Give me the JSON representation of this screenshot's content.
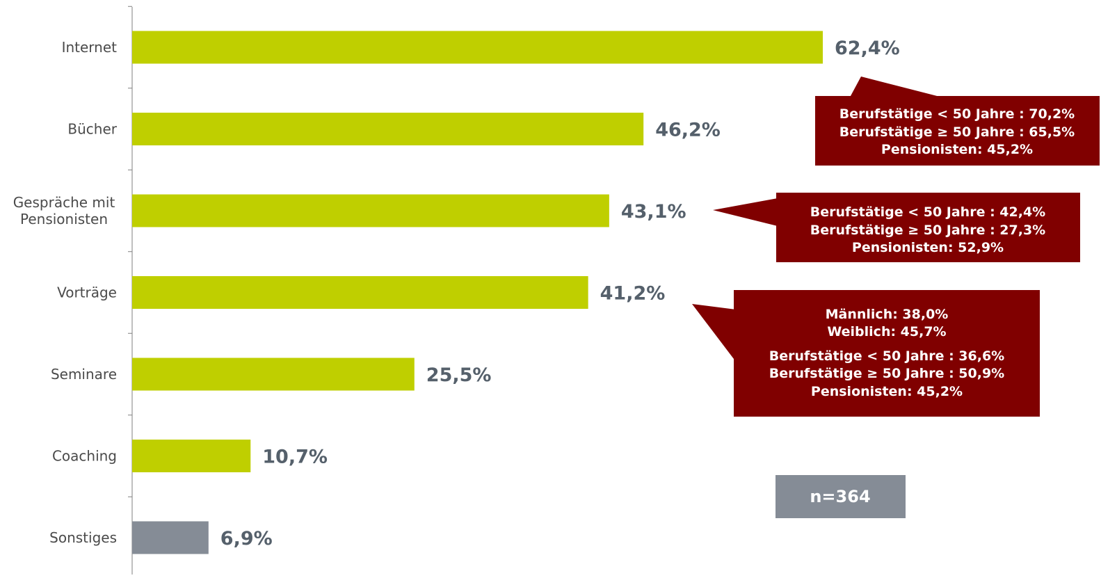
{
  "chart_data": {
    "type": "bar",
    "orientation": "horizontal",
    "categories": [
      "Internet",
      "Bücher",
      "Gespräche mit Pensionisten",
      "Vorträge",
      "Seminare",
      "Coaching",
      "Sonstiges"
    ],
    "category_lines": [
      [
        "Internet"
      ],
      [
        "Bücher"
      ],
      [
        "Gespräche mit",
        "Pensionisten"
      ],
      [
        "Vorträge"
      ],
      [
        "Seminare"
      ],
      [
        "Coaching"
      ],
      [
        "Sonstiges"
      ]
    ],
    "values": [
      62.4,
      46.2,
      43.1,
      41.2,
      25.5,
      10.7,
      6.9
    ],
    "value_labels": [
      "62,4%",
      "46,2%",
      "43,1%",
      "41,2%",
      "25,5%",
      "10,7%",
      "6,9%"
    ],
    "xlim": [
      0,
      70
    ],
    "grid": false,
    "colors": {
      "bar": "#bfcf00",
      "bar_last": "#858c96",
      "value_text": "#55606b",
      "note_box": "#800000",
      "n_box": "#858c96"
    },
    "annotations": [
      {
        "category": "Internet",
        "lines": [
          "Berufstätige < 50 Jahre : 70,2%",
          "Berufstätige ≥ 50 Jahre : 65,5%",
          "Pensionisten:  45,2%"
        ]
      },
      {
        "category": "Gespräche mit Pensionisten",
        "lines": [
          "Berufstätige < 50 Jahre : 42,4%",
          "Berufstätige ≥ 50 Jahre : 27,3%",
          "Pensionisten:  52,9%"
        ]
      },
      {
        "category": "Vorträge",
        "lines": [
          "Männlich: 38,0%",
          "Weiblich: 45,7%",
          "Berufstätige < 50 Jahre : 36,6%",
          "Berufstätige ≥ 50 Jahre : 50,9%",
          "Pensionisten: 45,2%"
        ]
      }
    ],
    "sample_size": "n=364"
  }
}
